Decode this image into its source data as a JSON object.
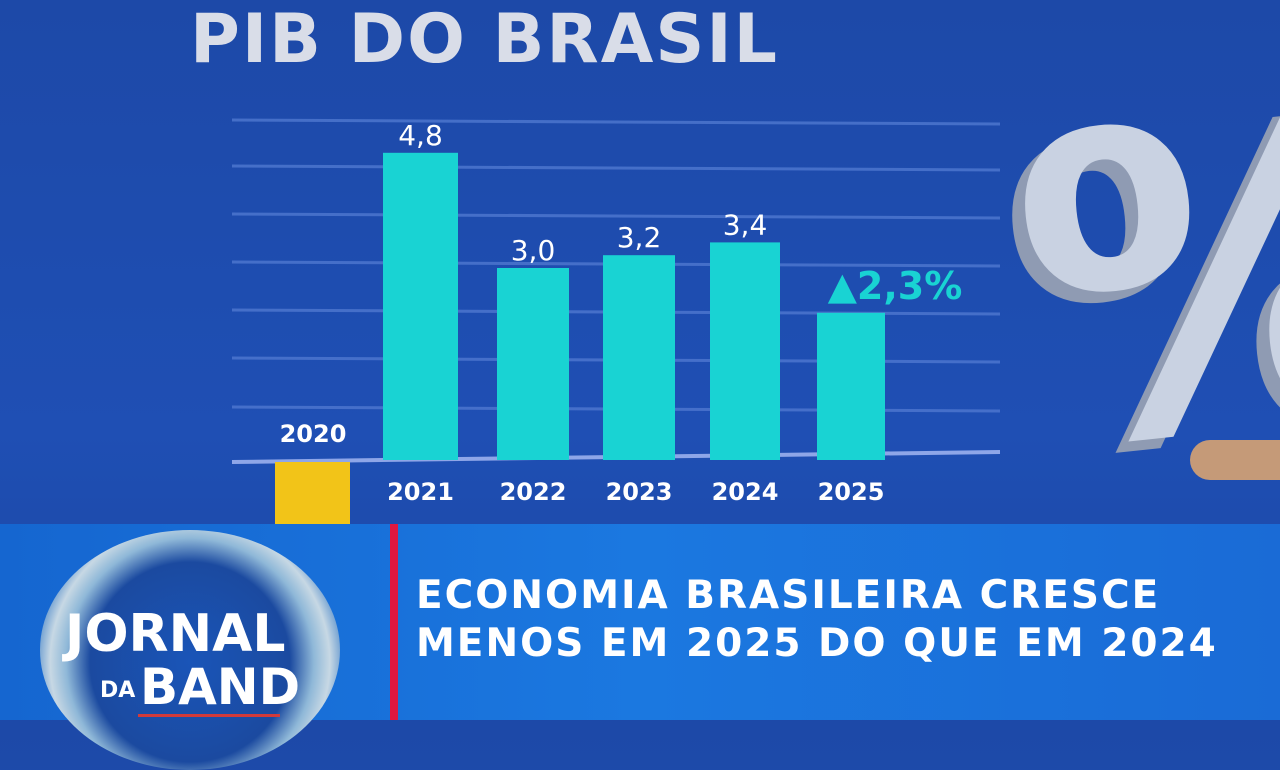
{
  "chart_data": {
    "type": "bar",
    "title": "PIB DO BRASIL",
    "categories": [
      "2020",
      "2021",
      "2022",
      "2023",
      "2024",
      "2025"
    ],
    "values": [
      null,
      4.8,
      3.0,
      3.2,
      3.4,
      2.3
    ],
    "data_labels": [
      "",
      "4,8",
      "3,0",
      "3,2",
      "3,4",
      "▲2,3%"
    ],
    "colors": {
      "positive": "#19d3d3",
      "negative": "#f2c418",
      "highlight_label": "#19d3d3",
      "default_label": "#ffffff"
    },
    "grid": true,
    "legend": "none"
  },
  "lower_third": {
    "headline_line1": "ECONOMIA BRASILEIRA CRESCE",
    "headline_line2": "MENOS EM 2025 DO QUE EM 2024",
    "accent_color": "#e0173f"
  },
  "logo": {
    "line1": "JORNAL",
    "line2": "DA",
    "line3": "BAND"
  },
  "background_graphic": "%"
}
